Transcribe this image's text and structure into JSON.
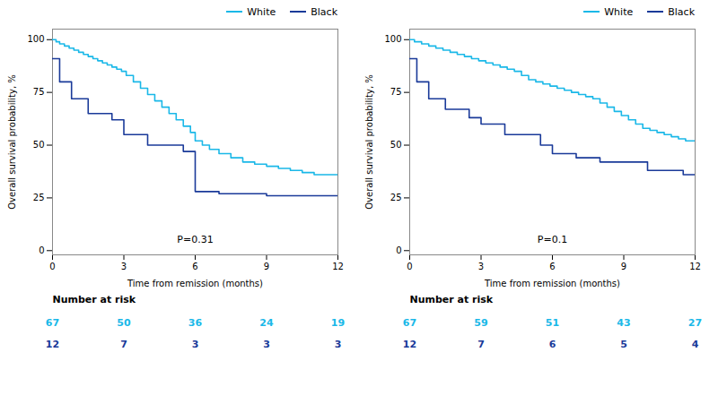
{
  "chart_data": [
    {
      "type": "step",
      "xlabel": "Time from remission (months)",
      "ylabel": "Overall survival probability, %",
      "xlim": [
        0,
        12
      ],
      "ylim": [
        -2,
        105
      ],
      "xticks": [
        0,
        3,
        6,
        9,
        12
      ],
      "yticks": [
        0,
        25,
        50,
        75,
        100
      ],
      "grid": false,
      "legend": "top",
      "annotations": [
        "P=0.31"
      ],
      "series": [
        {
          "name": "White",
          "color": "#1ab8e8",
          "x": [
            0,
            0.15,
            0.3,
            0.5,
            0.7,
            0.9,
            1.1,
            1.3,
            1.5,
            1.7,
            1.9,
            2.1,
            2.3,
            2.5,
            2.7,
            2.9,
            3.1,
            3.4,
            3.7,
            4.0,
            4.3,
            4.6,
            4.9,
            5.2,
            5.5,
            5.8,
            6.0,
            6.3,
            6.6,
            7.0,
            7.5,
            8.0,
            8.5,
            9.0,
            9.5,
            10.0,
            10.5,
            11.0,
            12.0
          ],
          "values": [
            100,
            99,
            98,
            97,
            96,
            95,
            94,
            93,
            92,
            91,
            90,
            89,
            88,
            87,
            86,
            85,
            83,
            80,
            77,
            74,
            71,
            68,
            65,
            62,
            59,
            56,
            52,
            50,
            48,
            46,
            44,
            42,
            41,
            40,
            39,
            38,
            37,
            36,
            36
          ]
        },
        {
          "name": "Black",
          "color": "#1a3a99",
          "x": [
            0,
            0.3,
            0.8,
            1.5,
            2.5,
            3.0,
            4.0,
            5.5,
            6.0,
            7.0,
            9.0,
            10.0,
            12.0
          ],
          "values": [
            91,
            80,
            72,
            65,
            62,
            55,
            50,
            47,
            28,
            27,
            26,
            26,
            26
          ]
        }
      ],
      "risk_table": {
        "title": "Number at risk",
        "x": [
          0,
          3,
          6,
          9,
          12
        ],
        "series": [
          {
            "color": "#1ab8e8",
            "values": [
              67,
              50,
              36,
              24,
              19
            ]
          },
          {
            "color": "#1a3a99",
            "values": [
              12,
              7,
              3,
              3,
              3
            ]
          }
        ]
      }
    },
    {
      "type": "step",
      "xlabel": "Time from remission (months)",
      "ylabel": "Overall survival probability, %",
      "xlim": [
        0,
        12
      ],
      "ylim": [
        -2,
        105
      ],
      "xticks": [
        0,
        3,
        6,
        9,
        12
      ],
      "yticks": [
        0,
        25,
        50,
        75,
        100
      ],
      "grid": false,
      "legend": "top",
      "annotations": [
        "P=0.1"
      ],
      "series": [
        {
          "name": "White",
          "color": "#1ab8e8",
          "x": [
            0,
            0.2,
            0.5,
            0.8,
            1.1,
            1.4,
            1.7,
            2.0,
            2.3,
            2.6,
            2.9,
            3.2,
            3.5,
            3.8,
            4.1,
            4.4,
            4.7,
            5.0,
            5.3,
            5.6,
            5.9,
            6.2,
            6.5,
            6.8,
            7.1,
            7.4,
            7.7,
            8.0,
            8.3,
            8.6,
            8.9,
            9.2,
            9.5,
            9.8,
            10.1,
            10.4,
            10.7,
            11.0,
            11.3,
            11.6,
            12.0
          ],
          "values": [
            100,
            99,
            98,
            97,
            96,
            95,
            94,
            93,
            92,
            91,
            90,
            89,
            88,
            87,
            86,
            85,
            83,
            81,
            80,
            79,
            78,
            77,
            76,
            75,
            74,
            73,
            72,
            70,
            68,
            66,
            64,
            62,
            60,
            58,
            57,
            56,
            55,
            54,
            53,
            52,
            52
          ]
        },
        {
          "name": "Black",
          "color": "#1a3a99",
          "x": [
            0,
            0.3,
            0.8,
            1.5,
            2.5,
            3.0,
            4.0,
            5.5,
            6.0,
            7.0,
            8.0,
            10.0,
            11.5,
            12.0
          ],
          "values": [
            91,
            80,
            72,
            67,
            63,
            60,
            55,
            50,
            46,
            44,
            42,
            38,
            36,
            36
          ]
        }
      ],
      "risk_table": {
        "title": "Number at risk",
        "x": [
          0,
          3,
          6,
          9,
          12
        ],
        "series": [
          {
            "color": "#1ab8e8",
            "values": [
              67,
              59,
              51,
              43,
              27
            ]
          },
          {
            "color": "#1a3a99",
            "values": [
              12,
              7,
              6,
              5,
              4
            ]
          }
        ]
      }
    }
  ]
}
